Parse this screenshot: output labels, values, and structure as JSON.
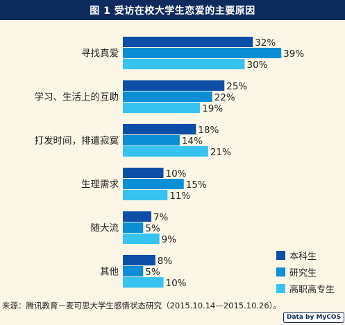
{
  "title": "图 1  受访在校大学生恋爱的主要原因",
  "chart_data": {
    "type": "bar",
    "orientation": "horizontal",
    "categories": [
      "寻找真爱",
      "学习、生活上的互助",
      "打发时间，排遣寂寞",
      "生理需求",
      "随大流",
      "其他"
    ],
    "series": [
      {
        "name": "本科生",
        "values": [
          32,
          25,
          18,
          10,
          7,
          8
        ],
        "color": "#0d4fa6"
      },
      {
        "name": "研究生",
        "values": [
          39,
          22,
          14,
          15,
          5,
          5
        ],
        "color": "#0a8fd6"
      },
      {
        "name": "高职高专生",
        "values": [
          30,
          19,
          21,
          11,
          9,
          10
        ],
        "color": "#36c3f0"
      }
    ],
    "value_suffix": "%",
    "xlim": [
      0,
      45
    ],
    "grid": false,
    "legend": "bottom-right"
  },
  "source": "来源：腾讯教育－麦可思大学生感情状态研究（2015.10.14—2015.10.26）。",
  "badge": "Data by MyCOS"
}
